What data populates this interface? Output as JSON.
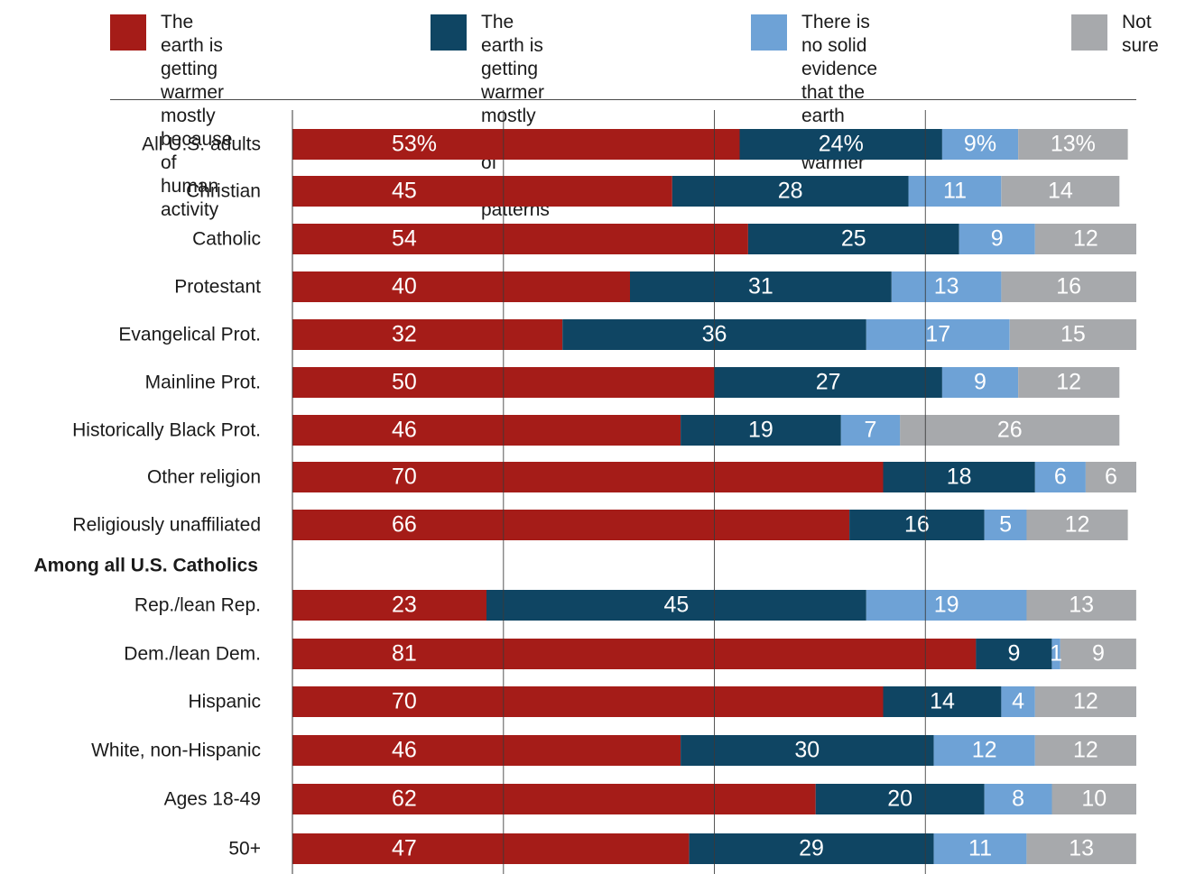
{
  "legend": [
    {
      "label": "The earth is getting\nwarmer mostly because\nof human activity",
      "color": "#a51c18"
    },
    {
      "label": "The earth is getting\nwarmer mostly because\nof natural patterns",
      "color": "#0f4563"
    },
    {
      "label": "There is no solid\nevidence that the earth\nis getting warmer",
      "color": "#6ea2d6"
    },
    {
      "label": "Not sure",
      "color": "#a7a9ac"
    }
  ],
  "chart_data": {
    "type": "bar",
    "orientation": "horizontal",
    "stacked": true,
    "grid": true,
    "series": [
      {
        "name": "The earth is getting warmer mostly because of human activity",
        "color": "#a51c18"
      },
      {
        "name": "The earth is getting warmer mostly because of natural patterns",
        "color": "#0f4563"
      },
      {
        "name": "There is no solid evidence that the earth is getting warmer",
        "color": "#6ea2d6"
      },
      {
        "name": "Not sure",
        "color": "#a7a9ac"
      }
    ],
    "rows": [
      {
        "label": "All U.S. adults",
        "values": [
          53,
          24,
          9,
          13
        ],
        "display": [
          "53%",
          "24%",
          "9%",
          "13%"
        ]
      },
      {
        "label": "Christian",
        "values": [
          45,
          28,
          11,
          14
        ],
        "display": [
          "45",
          "28",
          "11",
          "14"
        ]
      },
      {
        "label": "Catholic",
        "values": [
          54,
          25,
          9,
          12
        ],
        "display": [
          "54",
          "25",
          "9",
          "12"
        ]
      },
      {
        "label": "Protestant",
        "values": [
          40,
          31,
          13,
          16
        ],
        "display": [
          "40",
          "31",
          "13",
          "16"
        ]
      },
      {
        "label": "Evangelical Prot.",
        "values": [
          32,
          36,
          17,
          15
        ],
        "display": [
          "32",
          "36",
          "17",
          "15"
        ]
      },
      {
        "label": "Mainline Prot.",
        "values": [
          50,
          27,
          9,
          12
        ],
        "display": [
          "50",
          "27",
          "9",
          "12"
        ]
      },
      {
        "label": "Historically Black Prot.",
        "values": [
          46,
          19,
          7,
          26
        ],
        "display": [
          "46",
          "19",
          "7",
          "26"
        ]
      },
      {
        "label": "Other religion",
        "values": [
          70,
          18,
          6,
          6
        ],
        "display": [
          "70",
          "18",
          "6",
          "6"
        ]
      },
      {
        "label": "Religiously unaffiliated",
        "values": [
          66,
          16,
          5,
          12
        ],
        "display": [
          "66",
          "16",
          "5",
          "12"
        ]
      },
      {
        "label": "Among all U.S. Catholics",
        "group_header": true
      },
      {
        "label": "Rep./lean Rep.",
        "values": [
          23,
          45,
          19,
          13
        ],
        "display": [
          "23",
          "45",
          "19",
          "13"
        ]
      },
      {
        "label": "Dem./lean Dem.",
        "values": [
          81,
          9,
          1,
          9
        ],
        "display": [
          "81",
          "9",
          "1",
          "9"
        ]
      },
      {
        "label": "Hispanic",
        "values": [
          70,
          14,
          4,
          12
        ],
        "display": [
          "70",
          "14",
          "4",
          "12"
        ]
      },
      {
        "label": "White, non-Hispanic",
        "values": [
          46,
          30,
          12,
          12
        ],
        "display": [
          "46",
          "30",
          "12",
          "12"
        ]
      },
      {
        "label": "Ages 18-49",
        "values": [
          62,
          20,
          8,
          10
        ],
        "display": [
          "62",
          "20",
          "8",
          "10"
        ]
      },
      {
        "label": "50+",
        "values": [
          47,
          29,
          11,
          13
        ],
        "display": [
          "47",
          "29",
          "11",
          "13"
        ]
      }
    ]
  }
}
